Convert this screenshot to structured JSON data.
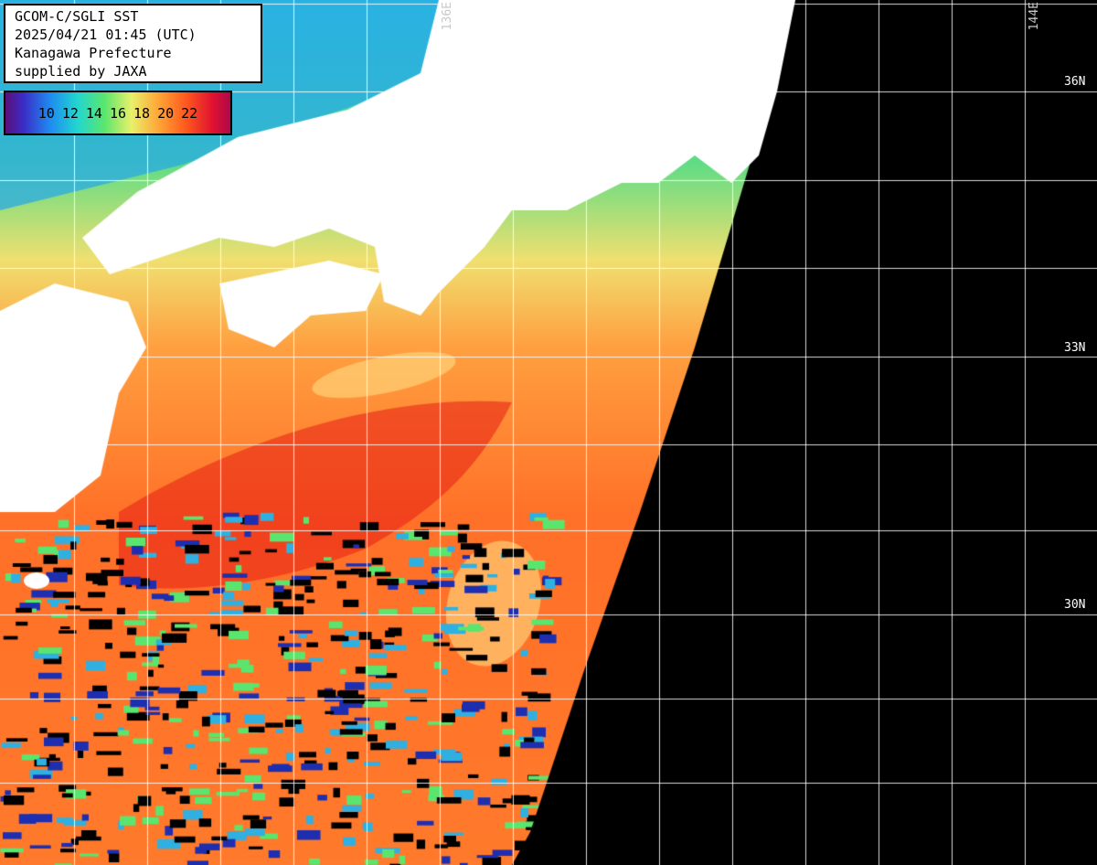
{
  "header": {
    "line1": "GCOM-C/SGLI SST",
    "line2": "2025/04/21 01:45 (UTC)",
    "line3": "Kanagawa Prefecture",
    "line4": "supplied by JAXA"
  },
  "legend": {
    "ticks": [
      "10",
      "12",
      "14",
      "16",
      "18",
      "20",
      "22"
    ],
    "colors": [
      "#5a0f78",
      "#1e8cf0",
      "#22d6d0",
      "#5ae66e",
      "#e8f06a",
      "#ffa636",
      "#e01230"
    ]
  },
  "grid": {
    "lat_labels": [
      "36N",
      "33N",
      "30N"
    ],
    "lon_labels": [
      "136E",
      "144E"
    ]
  },
  "colors": {
    "land": "#ffffff",
    "no_data": "#000000",
    "grid": "#ffffff",
    "warm_sea": "#ff6a22",
    "cool_sea": "#4fe0a0"
  }
}
